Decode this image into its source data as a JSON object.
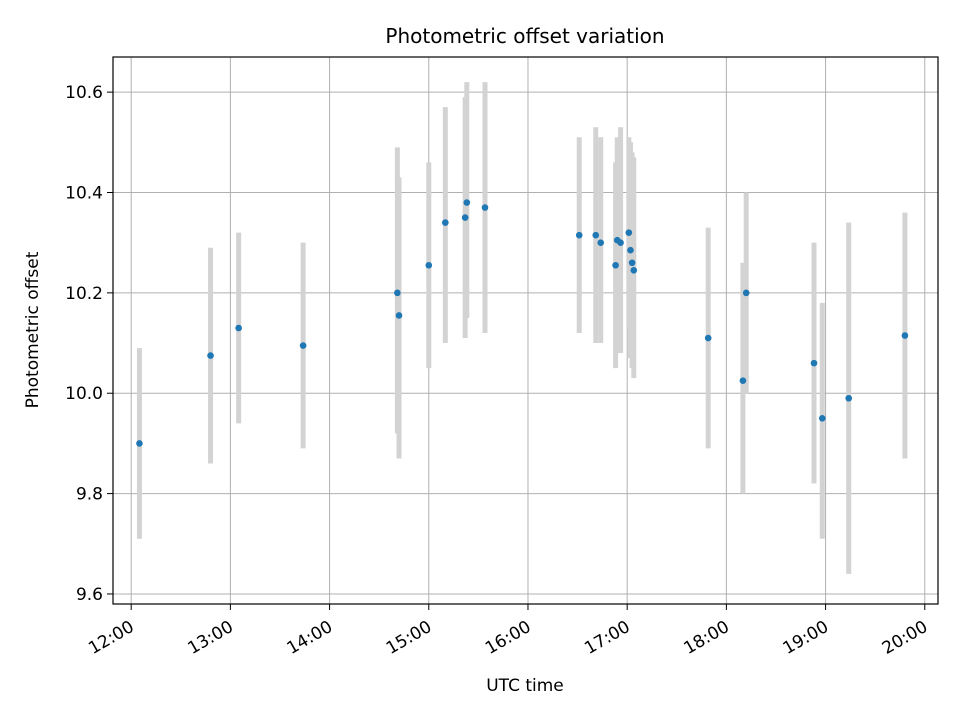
{
  "chart_data": {
    "type": "scatter",
    "title": "Photometric offset variation",
    "xlabel": "UTC time",
    "ylabel": "Photometric offset",
    "x_tick_labels": [
      "12:00",
      "13:00",
      "14:00",
      "15:00",
      "16:00",
      "17:00",
      "18:00",
      "19:00",
      "20:00"
    ],
    "y_tick_labels": [
      "9.6",
      "9.8",
      "10.0",
      "10.2",
      "10.4",
      "10.6"
    ],
    "xlim": [
      "11:49",
      "20:08"
    ],
    "ylim": [
      9.58,
      10.67
    ],
    "grid": true,
    "series": [
      {
        "marker_color": "#1f77b4",
        "errorbar_color": "#d3d3d3",
        "points": [
          {
            "x": "12:05",
            "y": 9.9,
            "y_low": 9.71,
            "y_high": 10.09
          },
          {
            "x": "12:48",
            "y": 10.075,
            "y_low": 9.86,
            "y_high": 10.29
          },
          {
            "x": "13:05",
            "y": 10.13,
            "y_low": 9.94,
            "y_high": 10.32
          },
          {
            "x": "13:44",
            "y": 10.095,
            "y_low": 9.89,
            "y_high": 10.3
          },
          {
            "x": "14:41",
            "y": 10.2,
            "y_low": 9.92,
            "y_high": 10.49
          },
          {
            "x": "14:42",
            "y": 10.155,
            "y_low": 9.87,
            "y_high": 10.43
          },
          {
            "x": "15:00",
            "y": 10.255,
            "y_low": 10.05,
            "y_high": 10.46
          },
          {
            "x": "15:10",
            "y": 10.34,
            "y_low": 10.1,
            "y_high": 10.57
          },
          {
            "x": "15:22",
            "y": 10.35,
            "y_low": 10.11,
            "y_high": 10.59
          },
          {
            "x": "15:23",
            "y": 10.38,
            "y_low": 10.15,
            "y_high": 10.62
          },
          {
            "x": "15:34",
            "y": 10.37,
            "y_low": 10.12,
            "y_high": 10.62
          },
          {
            "x": "16:31",
            "y": 10.315,
            "y_low": 10.12,
            "y_high": 10.51
          },
          {
            "x": "16:41",
            "y": 10.315,
            "y_low": 10.1,
            "y_high": 10.53
          },
          {
            "x": "16:44",
            "y": 10.3,
            "y_low": 10.1,
            "y_high": 10.51
          },
          {
            "x": "16:53",
            "y": 10.255,
            "y_low": 10.05,
            "y_high": 10.46
          },
          {
            "x": "16:54",
            "y": 10.305,
            "y_low": 10.1,
            "y_high": 10.51
          },
          {
            "x": "16:56",
            "y": 10.3,
            "y_low": 10.08,
            "y_high": 10.53
          },
          {
            "x": "17:01",
            "y": 10.32,
            "y_low": 10.13,
            "y_high": 10.51
          },
          {
            "x": "17:02",
            "y": 10.285,
            "y_low": 10.07,
            "y_high": 10.5
          },
          {
            "x": "17:03",
            "y": 10.26,
            "y_low": 10.05,
            "y_high": 10.48
          },
          {
            "x": "17:04",
            "y": 10.245,
            "y_low": 10.03,
            "y_high": 10.47
          },
          {
            "x": "17:49",
            "y": 10.11,
            "y_low": 9.89,
            "y_high": 10.33
          },
          {
            "x": "18:10",
            "y": 10.025,
            "y_low": 9.8,
            "y_high": 10.26
          },
          {
            "x": "18:12",
            "y": 10.2,
            "y_low": 10.0,
            "y_high": 10.4
          },
          {
            "x": "18:53",
            "y": 10.06,
            "y_low": 9.82,
            "y_high": 10.3
          },
          {
            "x": "18:58",
            "y": 9.95,
            "y_low": 9.71,
            "y_high": 10.18
          },
          {
            "x": "19:14",
            "y": 9.99,
            "y_low": 9.64,
            "y_high": 10.34
          },
          {
            "x": "19:48",
            "y": 10.115,
            "y_low": 9.87,
            "y_high": 10.36
          }
        ]
      }
    ]
  }
}
